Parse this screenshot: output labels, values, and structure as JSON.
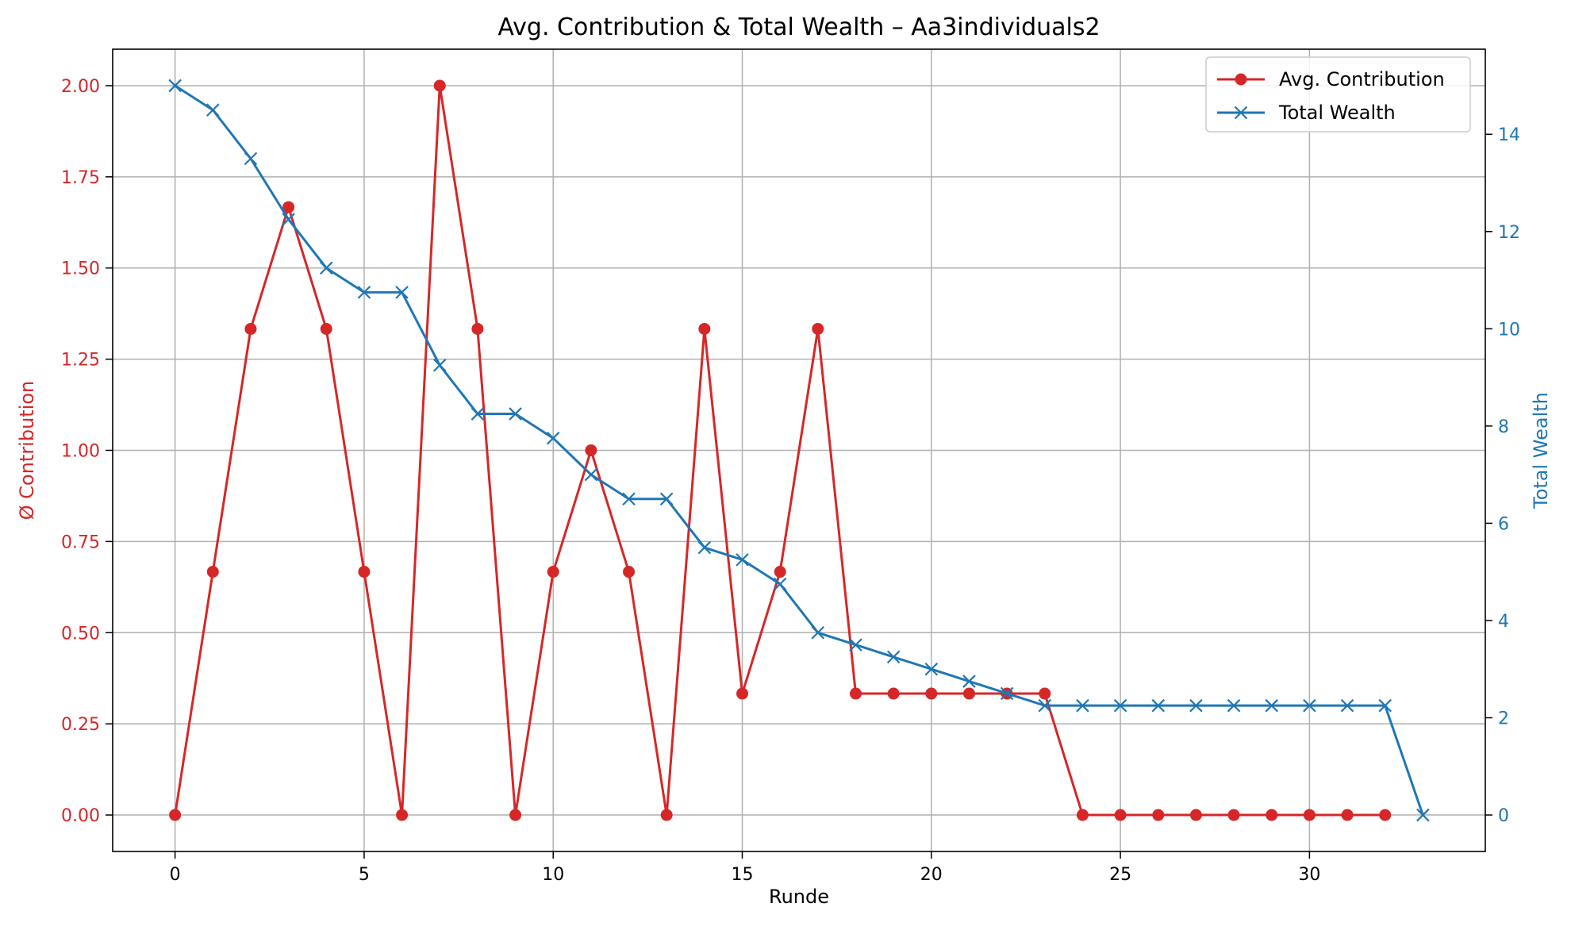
{
  "chart_data": {
    "type": "line",
    "title": "Avg. Contribution & Total Wealth – Aa3individuals2",
    "xlabel": "Runde",
    "ylabel_left": "Ø Contribution",
    "ylabel_right": "Total Wealth",
    "xlim": [
      -1.65,
      34.65
    ],
    "ylim_left": [
      -0.1,
      2.1
    ],
    "ylim_right": [
      -0.75,
      15.75
    ],
    "xticks": [
      0,
      5,
      10,
      15,
      20,
      25,
      30
    ],
    "yticks_left": [
      0.0,
      0.25,
      0.5,
      0.75,
      1.0,
      1.25,
      1.5,
      1.75,
      2.0
    ],
    "yticks_left_labels": [
      "0.00",
      "0.25",
      "0.50",
      "0.75",
      "1.00",
      "1.25",
      "1.50",
      "1.75",
      "2.00"
    ],
    "yticks_right": [
      0,
      2,
      4,
      6,
      8,
      10,
      12,
      14
    ],
    "grid": true,
    "legend_position": "top-right",
    "series": [
      {
        "name": "Avg. Contribution",
        "axis": "left",
        "marker": "circle",
        "color": "#d62728",
        "x": [
          0,
          1,
          2,
          3,
          4,
          5,
          6,
          7,
          8,
          9,
          10,
          11,
          12,
          13,
          14,
          15,
          16,
          17,
          18,
          19,
          20,
          21,
          22,
          23,
          24,
          25,
          26,
          27,
          28,
          29,
          30,
          31,
          32
        ],
        "values": [
          0,
          0.667,
          1.333,
          1.667,
          1.333,
          0.667,
          0,
          2.0,
          1.333,
          0,
          0.667,
          1.0,
          0.667,
          0,
          1.333,
          0.333,
          0.667,
          1.333,
          0.333,
          0.333,
          0.333,
          0.333,
          0.333,
          0.333,
          0,
          0,
          0,
          0,
          0,
          0,
          0,
          0,
          0
        ]
      },
      {
        "name": "Total Wealth",
        "axis": "right",
        "marker": "x",
        "color": "#1f77b4",
        "x": [
          0,
          1,
          2,
          3,
          4,
          5,
          6,
          7,
          8,
          9,
          10,
          11,
          12,
          13,
          14,
          15,
          16,
          17,
          18,
          19,
          20,
          21,
          22,
          23,
          24,
          25,
          26,
          27,
          28,
          29,
          30,
          31,
          32,
          33
        ],
        "values": [
          15.0,
          14.5,
          13.5,
          12.25,
          11.25,
          10.75,
          10.75,
          9.25,
          8.25,
          8.25,
          7.75,
          7.0,
          6.5,
          6.5,
          5.5,
          5.25,
          4.75,
          3.75,
          3.5,
          3.25,
          3.0,
          2.75,
          2.5,
          2.25,
          2.25,
          2.25,
          2.25,
          2.25,
          2.25,
          2.25,
          2.25,
          2.25,
          2.25,
          0
        ]
      }
    ]
  }
}
